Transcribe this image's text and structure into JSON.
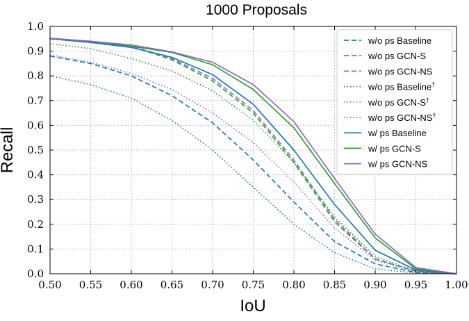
{
  "chart_data": {
    "type": "line",
    "title": "1000 Proposals",
    "xlabel": "IoU",
    "ylabel": "Recall",
    "xlim": [
      0.5,
      1.0
    ],
    "ylim": [
      0.0,
      1.0
    ],
    "grid": true,
    "legend_position": "top-right",
    "x_ticks": [
      "0.50",
      "0.55",
      "0.60",
      "0.65",
      "0.70",
      "0.75",
      "0.80",
      "0.85",
      "0.90",
      "0.95",
      "1.00"
    ],
    "y_ticks": [
      "0.0",
      "0.1",
      "0.2",
      "0.3",
      "0.4",
      "0.5",
      "0.6",
      "0.7",
      "0.8",
      "0.9",
      "1.0"
    ],
    "x": [
      0.5,
      0.55,
      0.6,
      0.65,
      0.7,
      0.75,
      0.8,
      0.85,
      0.9,
      0.95,
      1.0
    ],
    "series": [
      {
        "name": "w/o ps Baseline",
        "dagger": "",
        "color": "#1f77b4",
        "style": "dashed",
        "values": [
          0.88,
          0.85,
          0.8,
          0.72,
          0.61,
          0.46,
          0.29,
          0.13,
          0.04,
          0.005,
          0.0
        ]
      },
      {
        "name": "w/o ps GCN-S",
        "dagger": "",
        "color": "#2ca02c",
        "style": "dashed",
        "values": [
          0.95,
          0.935,
          0.92,
          0.865,
          0.78,
          0.65,
          0.45,
          0.21,
          0.06,
          0.01,
          0.0
        ]
      },
      {
        "name": "w/o ps GCN-NS",
        "dagger": "",
        "color": "#9467bd",
        "style": "dashed",
        "values": [
          0.95,
          0.935,
          0.92,
          0.87,
          0.79,
          0.66,
          0.46,
          0.22,
          0.06,
          0.01,
          0.0
        ]
      },
      {
        "name": "w/o ps Baseline",
        "dagger": "†",
        "color": "#1f77b4",
        "style": "dotted",
        "values": [
          0.8,
          0.765,
          0.71,
          0.62,
          0.5,
          0.35,
          0.2,
          0.085,
          0.02,
          0.003,
          0.0
        ]
      },
      {
        "name": "w/o ps GCN-S",
        "dagger": "†",
        "color": "#2ca02c",
        "style": "dotted",
        "values": [
          0.93,
          0.91,
          0.87,
          0.82,
          0.74,
          0.62,
          0.45,
          0.23,
          0.07,
          0.01,
          0.0
        ]
      },
      {
        "name": "w/o ps GCN-NS",
        "dagger": "†",
        "color": "#9467bd",
        "style": "dotted",
        "values": [
          0.885,
          0.855,
          0.81,
          0.745,
          0.65,
          0.53,
          0.37,
          0.185,
          0.055,
          0.008,
          0.0
        ]
      },
      {
        "name": "w/ ps Baseline",
        "dagger": "",
        "color": "#1f77b4",
        "style": "solid",
        "values": [
          0.95,
          0.935,
          0.915,
          0.875,
          0.805,
          0.685,
          0.5,
          0.28,
          0.095,
          0.015,
          0.0
        ]
      },
      {
        "name": "w/ ps GCN-S",
        "dagger": "",
        "color": "#2ca02c",
        "style": "solid",
        "values": [
          0.952,
          0.94,
          0.92,
          0.895,
          0.845,
          0.745,
          0.59,
          0.365,
          0.145,
          0.02,
          0.0
        ]
      },
      {
        "name": "w/ ps GCN-NS",
        "dagger": "",
        "color": "#9467bd",
        "style": "solid",
        "values": [
          0.952,
          0.94,
          0.925,
          0.897,
          0.855,
          0.765,
          0.615,
          0.385,
          0.16,
          0.025,
          0.0
        ]
      }
    ]
  }
}
